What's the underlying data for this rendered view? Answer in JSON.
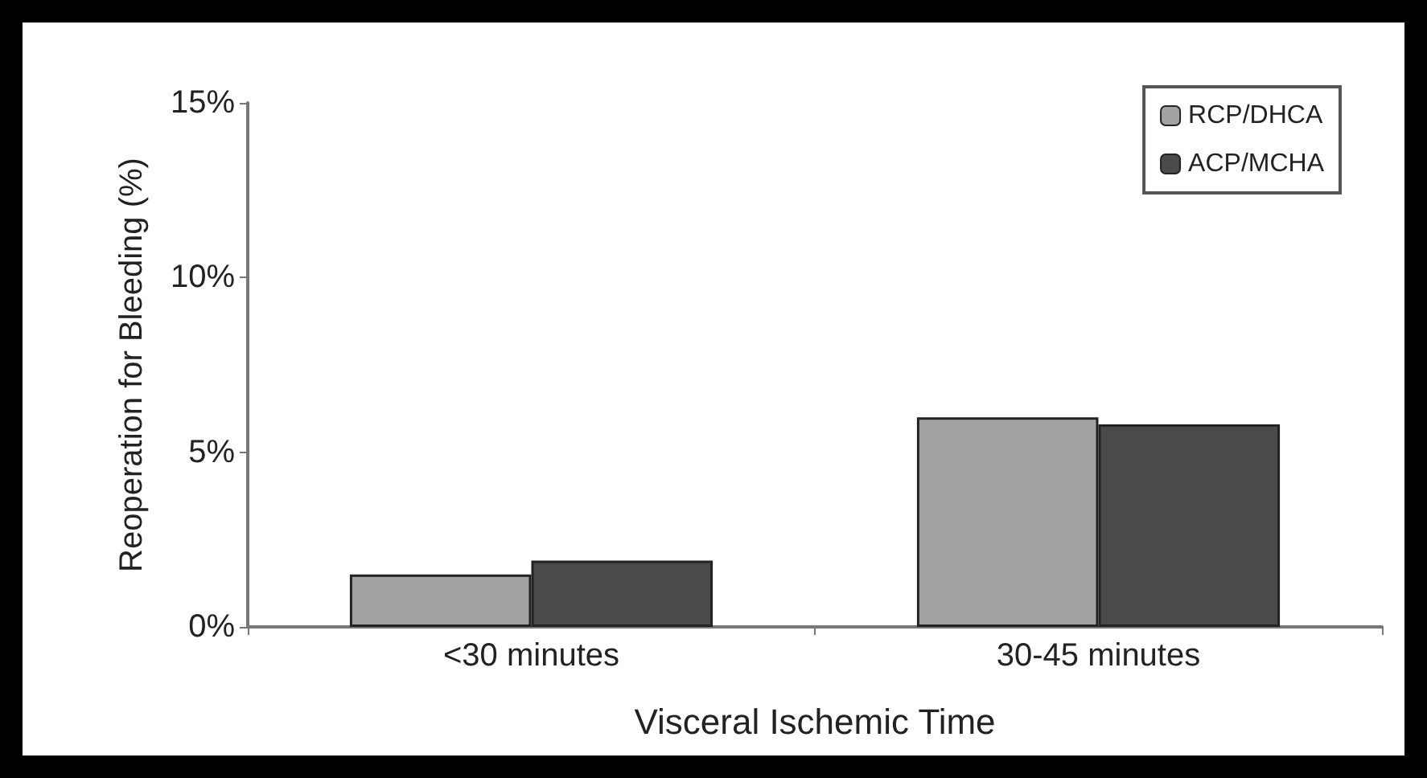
{
  "chart_data": {
    "type": "bar",
    "xlabel": "Visceral Ischemic Time",
    "ylabel": "Reoperation for Bleeding (%)",
    "categories": [
      "<30 minutes",
      "30-45 minutes"
    ],
    "series": [
      {
        "name": "RCP/DHCA",
        "color": "#a3a3a3",
        "values": [
          1.5,
          6.0
        ]
      },
      {
        "name": "ACP/MCHA",
        "color": "#4a4a4a",
        "values": [
          1.9,
          5.8
        ]
      }
    ],
    "ylim": [
      0,
      15
    ],
    "yticks": [
      {
        "value": 0,
        "label": "0%"
      },
      {
        "value": 5,
        "label": "5%"
      },
      {
        "value": 10,
        "label": "10%"
      },
      {
        "value": 15,
        "label": "15%"
      }
    ],
    "grid": false,
    "legend": "top right"
  }
}
